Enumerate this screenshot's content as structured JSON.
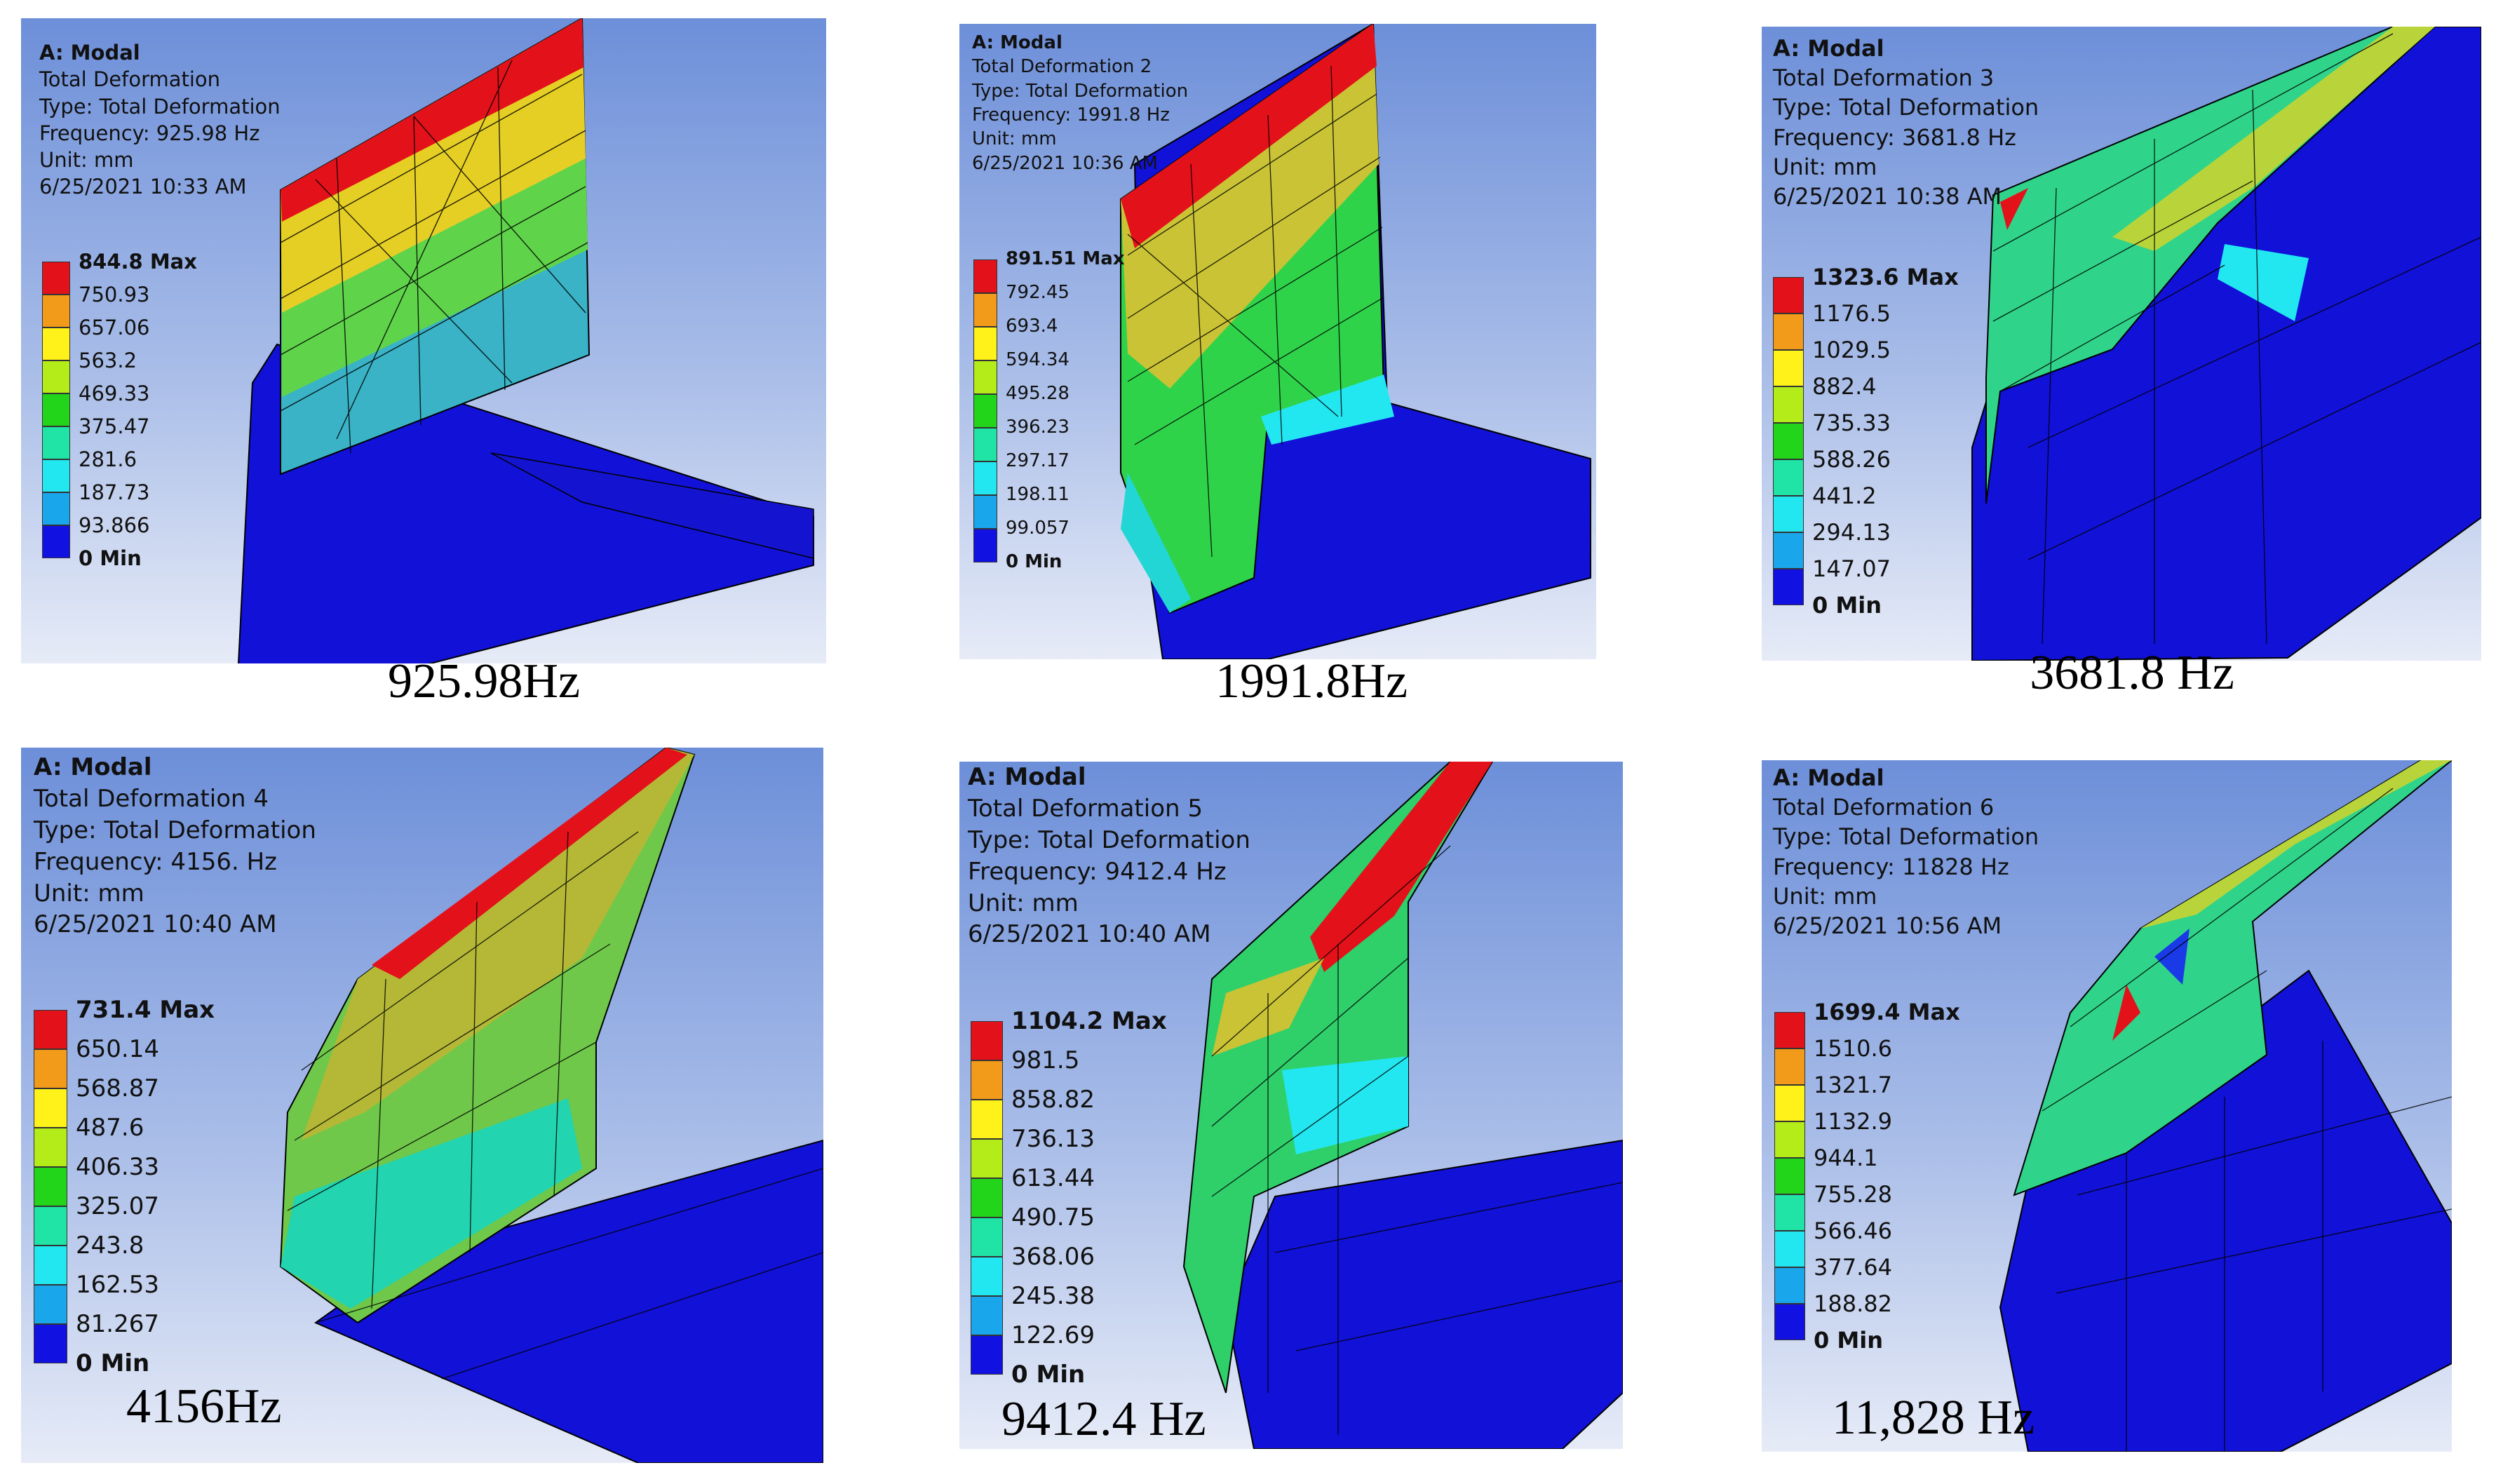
{
  "legend_colors": [
    "#e3111a",
    "#f29a1a",
    "#fff21a",
    "#b4ec1a",
    "#22d41a",
    "#20e3a6",
    "#22e7f0",
    "#1aa6ea",
    "#1111e1"
  ],
  "panels": [
    {
      "app": "A: Modal",
      "result": "Total Deformation",
      "type": "Type: Total Deformation",
      "frequency": "Frequency: 925.98 Hz",
      "unit": "Unit: mm",
      "timestamp": "6/25/2021 10:33 AM",
      "legend": [
        "844.8 Max",
        "750.93",
        "657.06",
        "563.2",
        "469.33",
        "375.47",
        "281.6",
        "187.73",
        "93.866",
        "0 Min"
      ],
      "caption": "925.98Hz"
    },
    {
      "app": "A: Modal",
      "result": "Total Deformation 2",
      "type": "Type: Total Deformation",
      "frequency": "Frequency: 1991.8 Hz",
      "unit": "Unit: mm",
      "timestamp": "6/25/2021 10:36 AM",
      "legend": [
        "891.51 Max",
        "792.45",
        "693.4",
        "594.34",
        "495.28",
        "396.23",
        "297.17",
        "198.11",
        "99.057",
        "0 Min"
      ],
      "caption": "1991.8Hz"
    },
    {
      "app": "A: Modal",
      "result": "Total Deformation 3",
      "type": "Type: Total Deformation",
      "frequency": "Frequency: 3681.8 Hz",
      "unit": "Unit: mm",
      "timestamp": "6/25/2021 10:38 AM",
      "legend": [
        "1323.6 Max",
        "1176.5",
        "1029.5",
        "882.4",
        "735.33",
        "588.26",
        "441.2",
        "294.13",
        "147.07",
        "0 Min"
      ],
      "caption": "3681.8 Hz"
    },
    {
      "app": "A: Modal",
      "result": "Total Deformation 4",
      "type": "Type: Total Deformation",
      "frequency": "Frequency: 4156. Hz",
      "unit": "Unit: mm",
      "timestamp": "6/25/2021 10:40 AM",
      "legend": [
        "731.4 Max",
        "650.14",
        "568.87",
        "487.6",
        "406.33",
        "325.07",
        "243.8",
        "162.53",
        "81.267",
        "0 Min"
      ],
      "caption": "4156Hz"
    },
    {
      "app": "A: Modal",
      "result": "Total Deformation 5",
      "type": "Type: Total Deformation",
      "frequency": "Frequency: 9412.4 Hz",
      "unit": "Unit: mm",
      "timestamp": "6/25/2021 10:40 AM",
      "legend": [
        "1104.2 Max",
        "981.5",
        "858.82",
        "736.13",
        "613.44",
        "490.75",
        "368.06",
        "245.38",
        "122.69",
        "0 Min"
      ],
      "caption": "9412.4 Hz"
    },
    {
      "app": "A: Modal",
      "result": "Total Deformation 6",
      "type": "Type: Total Deformation",
      "frequency": "Frequency: 11828 Hz",
      "unit": "Unit: mm",
      "timestamp": "6/25/2021 10:56 AM",
      "legend": [
        "1699.4 Max",
        "1510.6",
        "1321.7",
        "1132.9",
        "944.1",
        "755.28",
        "566.46",
        "377.64",
        "188.82",
        "0 Min"
      ],
      "caption": "11,828 Hz"
    }
  ]
}
